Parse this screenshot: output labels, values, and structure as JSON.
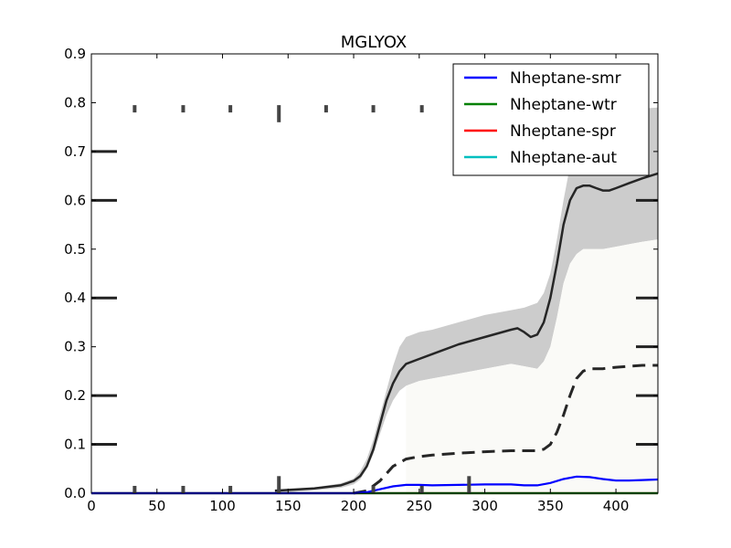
{
  "chart_data": {
    "type": "line",
    "title": "MGLYOX",
    "xlabel": "",
    "ylabel": "",
    "xlim": [
      0,
      432
    ],
    "ylim": [
      0,
      0.9
    ],
    "x_ticks": [
      0,
      50,
      100,
      150,
      200,
      250,
      300,
      350,
      400
    ],
    "y_ticks": [
      0.0,
      0.1,
      0.2,
      0.3,
      0.4,
      0.5,
      0.6,
      0.7,
      0.8,
      0.9
    ],
    "x_tick_labels": [
      "0",
      "50",
      "100",
      "150",
      "200",
      "250",
      "300",
      "350",
      "400"
    ],
    "y_tick_labels": [
      "0.0",
      "0.1",
      "0.2",
      "0.3",
      "0.4",
      "0.5",
      "0.6",
      "0.7",
      "0.8",
      "0.9"
    ],
    "grid": false,
    "legend_position": "top-right",
    "series": [
      {
        "name": "Nheptane-smr",
        "color": "#0000ff",
        "x": [
          0,
          200,
          210,
          220,
          230,
          240,
          250,
          260,
          280,
          300,
          320,
          330,
          340,
          350,
          360,
          370,
          380,
          390,
          400,
          410,
          420,
          432
        ],
        "values": [
          0,
          0,
          0.002,
          0.008,
          0.014,
          0.017,
          0.017,
          0.016,
          0.017,
          0.018,
          0.018,
          0.016,
          0.016,
          0.021,
          0.029,
          0.034,
          0.033,
          0.029,
          0.026,
          0.026,
          0.027,
          0.028
        ]
      },
      {
        "name": "Nheptane-wtr",
        "color": "#008000",
        "x": [
          0,
          432
        ],
        "values": [
          0.0,
          0.0
        ]
      },
      {
        "name": "Nheptane-spr",
        "color": "#ff0000",
        "x": [
          0,
          432
        ],
        "values": [
          0.0,
          0.0
        ]
      },
      {
        "name": "Nheptane-aut",
        "color": "#00bfbf",
        "x": [
          0,
          432
        ],
        "values": [
          0.0,
          0.0
        ]
      }
    ],
    "envelope": {
      "color": "#cccccc",
      "x": [
        140,
        170,
        190,
        200,
        205,
        210,
        215,
        220,
        225,
        230,
        235,
        240,
        250,
        260,
        280,
        300,
        320,
        330,
        340,
        345,
        350,
        355,
        360,
        365,
        370,
        375,
        380,
        390,
        400,
        410,
        420,
        432
      ],
      "lower": [
        0,
        0.006,
        0.011,
        0.018,
        0.028,
        0.05,
        0.08,
        0.12,
        0.16,
        0.19,
        0.21,
        0.22,
        0.23,
        0.235,
        0.245,
        0.255,
        0.265,
        0.26,
        0.255,
        0.27,
        0.3,
        0.36,
        0.43,
        0.47,
        0.49,
        0.5,
        0.5,
        0.5,
        0.505,
        0.51,
        0.515,
        0.52
      ],
      "upper": [
        0.006,
        0.012,
        0.02,
        0.03,
        0.045,
        0.07,
        0.11,
        0.16,
        0.21,
        0.26,
        0.3,
        0.32,
        0.33,
        0.335,
        0.35,
        0.365,
        0.375,
        0.38,
        0.39,
        0.41,
        0.45,
        0.52,
        0.6,
        0.67,
        0.72,
        0.745,
        0.755,
        0.77,
        0.78,
        0.785,
        0.788,
        0.79
      ]
    },
    "reference_mean": {
      "color": "#262626",
      "x": [
        140,
        170,
        190,
        200,
        205,
        210,
        215,
        220,
        225,
        230,
        235,
        240,
        250,
        260,
        280,
        300,
        320,
        325,
        330,
        335,
        340,
        345,
        350,
        355,
        360,
        365,
        370,
        375,
        380,
        385,
        390,
        395,
        400,
        410,
        420,
        432
      ],
      "values": [
        0.005,
        0.01,
        0.016,
        0.025,
        0.035,
        0.055,
        0.09,
        0.14,
        0.19,
        0.225,
        0.25,
        0.265,
        0.275,
        0.285,
        0.305,
        0.32,
        0.335,
        0.338,
        0.33,
        0.32,
        0.325,
        0.35,
        0.4,
        0.47,
        0.55,
        0.6,
        0.625,
        0.63,
        0.63,
        0.625,
        0.62,
        0.62,
        0.625,
        0.635,
        0.645,
        0.655
      ]
    },
    "reference_dashed": {
      "color": "#262626",
      "x": [
        200,
        210,
        220,
        230,
        240,
        250,
        260,
        280,
        300,
        320,
        340,
        345,
        350,
        355,
        360,
        365,
        370,
        375,
        380,
        390,
        400,
        410,
        420,
        432
      ],
      "values": [
        0,
        0.005,
        0.025,
        0.055,
        0.07,
        0.075,
        0.078,
        0.082,
        0.085,
        0.087,
        0.087,
        0.09,
        0.1,
        0.125,
        0.16,
        0.2,
        0.235,
        0.25,
        0.255,
        0.255,
        0.258,
        0.26,
        0.262,
        0.262
      ]
    },
    "observation_bars": {
      "color": "#444444",
      "points": [
        {
          "x": 33,
          "low": 0.78,
          "high": 0.795
        },
        {
          "x": 70,
          "low": 0.78,
          "high": 0.795
        },
        {
          "x": 106,
          "low": 0.78,
          "high": 0.795
        },
        {
          "x": 143,
          "low": 0.76,
          "high": 0.795
        },
        {
          "x": 179,
          "low": 0.78,
          "high": 0.795
        },
        {
          "x": 215,
          "low": 0.78,
          "high": 0.795
        },
        {
          "x": 252,
          "low": 0.78,
          "high": 0.795
        },
        {
          "x": 33,
          "low": 0.0,
          "high": 0.015
        },
        {
          "x": 70,
          "low": 0.0,
          "high": 0.015
        },
        {
          "x": 106,
          "low": 0.0,
          "high": 0.015
        },
        {
          "x": 143,
          "low": 0.0,
          "high": 0.035
        },
        {
          "x": 215,
          "low": 0.0,
          "high": 0.015
        },
        {
          "x": 252,
          "low": 0.0,
          "high": 0.015
        },
        {
          "x": 288,
          "low": 0.0,
          "high": 0.035
        }
      ]
    },
    "side_marks_left": [
      0.7,
      0.6,
      0.4,
      0.2,
      0.1
    ],
    "side_marks_right": [
      0.6,
      0.4,
      0.3,
      0.2,
      0.1
    ]
  }
}
